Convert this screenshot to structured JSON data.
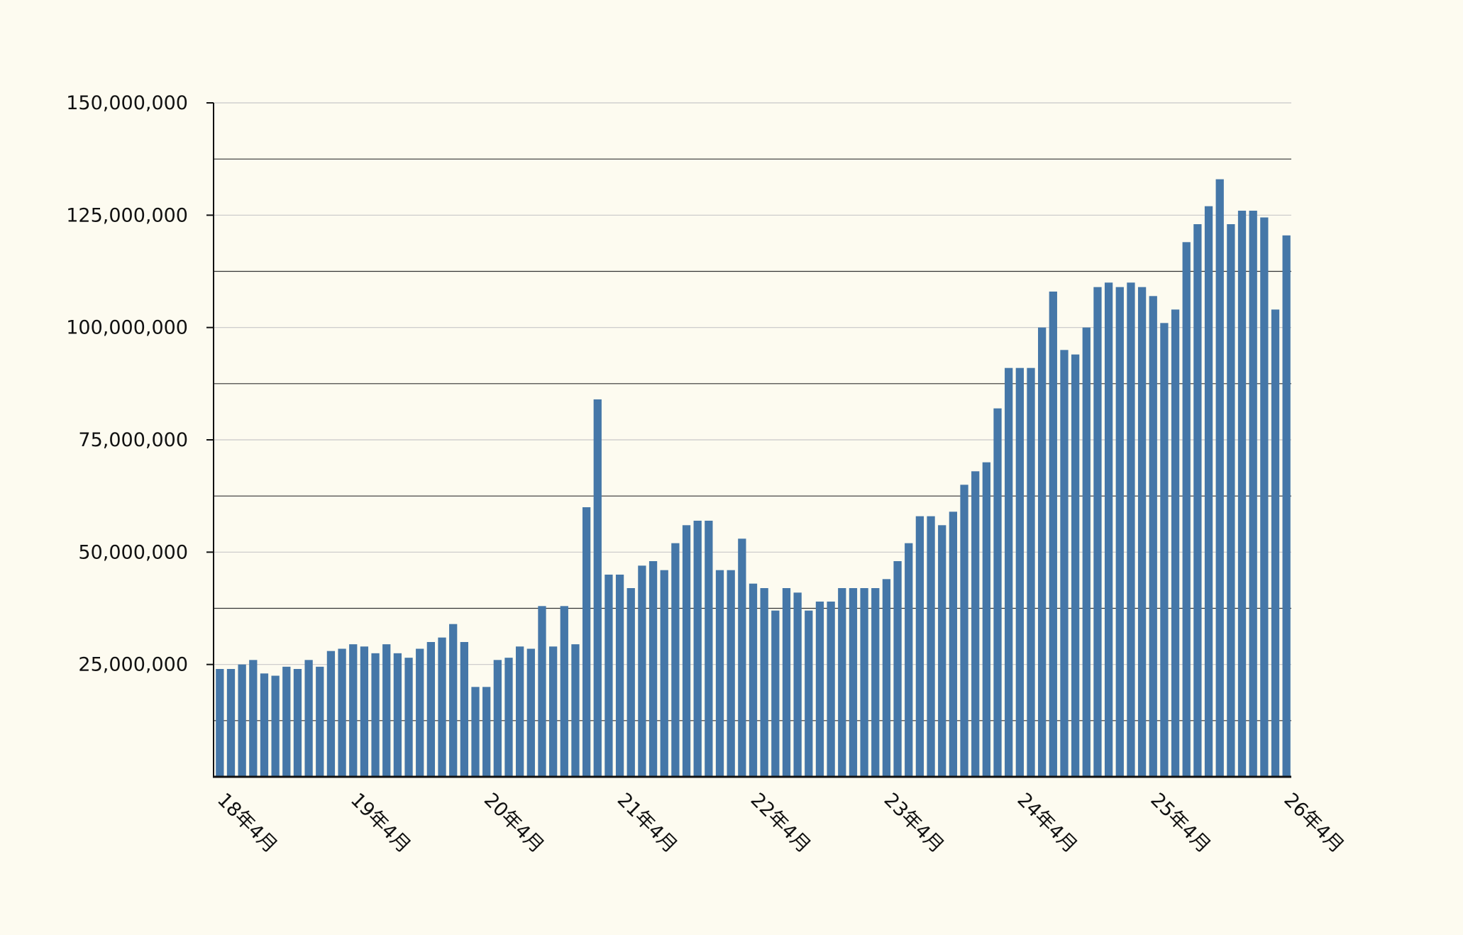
{
  "chart_data": {
    "type": "bar",
    "title": "",
    "xlabel": "",
    "ylabel": "",
    "ylim": [
      0,
      150000000
    ],
    "grid": true,
    "colors": {
      "bar": "#4577a8",
      "background": "#fdfbf0",
      "major_grid": "#c8c8c8",
      "minor_grid": "#333333",
      "axis": "#111111"
    },
    "y_ticks": [
      {
        "value": 25000000,
        "label": "25,000,000"
      },
      {
        "value": 50000000,
        "label": "50,000,000"
      },
      {
        "value": 75000000,
        "label": "75,000,000"
      },
      {
        "value": 100000000,
        "label": "100,000,000"
      },
      {
        "value": 125000000,
        "label": "125,000,000"
      },
      {
        "value": 150000000,
        "label": "150,000,000"
      }
    ],
    "y_minor_lines": [
      12500000,
      37500000,
      62500000,
      87500000,
      112500000,
      137500000
    ],
    "x_ticks": [
      {
        "index": 0,
        "label": "18年4月"
      },
      {
        "index": 12,
        "label": "19年4月"
      },
      {
        "index": 24,
        "label": "20年4月"
      },
      {
        "index": 36,
        "label": "21年4月"
      },
      {
        "index": 48,
        "label": "22年4月"
      },
      {
        "index": 60,
        "label": "23年4月"
      },
      {
        "index": 72,
        "label": "24年4月"
      },
      {
        "index": 84,
        "label": "25年4月"
      },
      {
        "index": 96,
        "label": "26年4月"
      }
    ],
    "x_range": [
      0,
      96
    ],
    "start_month": "2018-04",
    "values": [
      24000000,
      24000000,
      25000000,
      26000000,
      23000000,
      22500000,
      24500000,
      24000000,
      26000000,
      24500000,
      28000000,
      28500000,
      29500000,
      29000000,
      27500000,
      29500000,
      27500000,
      26500000,
      28500000,
      30000000,
      31000000,
      34000000,
      30000000,
      20000000,
      20000000,
      26000000,
      26500000,
      29000000,
      28500000,
      38000000,
      29000000,
      38000000,
      29500000,
      60000000,
      84000000,
      45000000,
      45000000,
      42000000,
      47000000,
      48000000,
      46000000,
      52000000,
      56000000,
      57000000,
      57000000,
      46000000,
      46000000,
      53000000,
      43000000,
      42000000,
      37000000,
      42000000,
      41000000,
      37000000,
      39000000,
      39000000,
      42000000,
      42000000,
      42000000,
      42000000,
      44000000,
      48000000,
      52000000,
      58000000,
      58000000,
      56000000,
      59000000,
      65000000,
      68000000,
      70000000,
      82000000,
      91000000,
      91000000,
      91000000,
      100000000,
      108000000,
      95000000,
      94000000,
      100000000,
      109000000,
      110000000,
      109000000,
      110000000,
      109000000,
      107000000,
      101000000,
      104000000,
      119000000,
      123000000,
      127000000,
      133000000,
      123000000,
      126000000,
      126000000,
      124500000,
      104000000,
      120500000
    ]
  }
}
